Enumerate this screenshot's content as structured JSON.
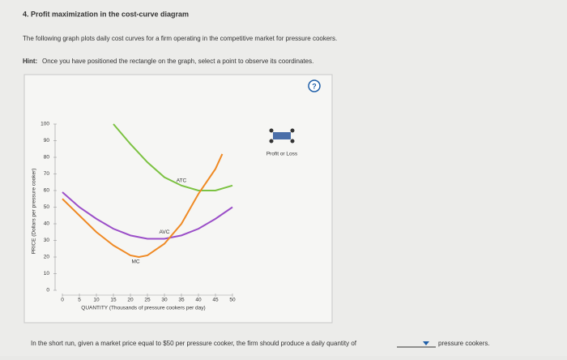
{
  "header": {
    "title": "4. Profit maximization in the cost-curve diagram",
    "intro": "The following graph plots daily cost curves for a firm operating in the competitive market for pressure cookers.",
    "hint_label": "Hint:",
    "hint": "Once you have positioned the rectangle on the graph, select a point to observe its coordinates."
  },
  "help_icon": "?",
  "tool_label": "Profit or Loss",
  "chart_data": {
    "type": "line",
    "x_label": "QUANTITY (Thousands of pressure cookers per day)",
    "y_label": "PRICE (Dollars per pressure cooker)",
    "xlim": [
      0,
      50
    ],
    "xticks": [
      0,
      5,
      10,
      15,
      20,
      25,
      30,
      35,
      40,
      45,
      50
    ],
    "ylim": [
      0,
      100
    ],
    "yticks": [
      0,
      10,
      20,
      30,
      40,
      50,
      60,
      70,
      80,
      90,
      100
    ],
    "series": [
      {
        "name": "ATC",
        "color": "#7cc242",
        "x": [
          15,
          20,
          25,
          30,
          35,
          40,
          45,
          50
        ],
        "values": [
          100,
          88,
          77,
          68,
          63,
          60,
          60,
          63
        ]
      },
      {
        "name": "AVC",
        "color": "#9b4fc8",
        "x": [
          0,
          5,
          10,
          15,
          20,
          25,
          30,
          35,
          40,
          45,
          50
        ],
        "values": [
          59,
          50,
          43,
          37,
          33,
          31,
          31,
          33,
          37,
          43,
          50
        ]
      },
      {
        "name": "MC",
        "color": "#ef8a25",
        "x": [
          0,
          5,
          10,
          15,
          20,
          22.5,
          25,
          30,
          35,
          40,
          45,
          47
        ],
        "values": [
          55,
          45,
          35,
          27,
          21,
          20,
          21,
          28,
          40,
          58,
          73,
          82
        ]
      }
    ]
  },
  "question": {
    "text": "In the short run, given a market price equal to $50 per pressure cooker, the firm should produce a daily quantity of",
    "suffix": "pressure cookers."
  }
}
